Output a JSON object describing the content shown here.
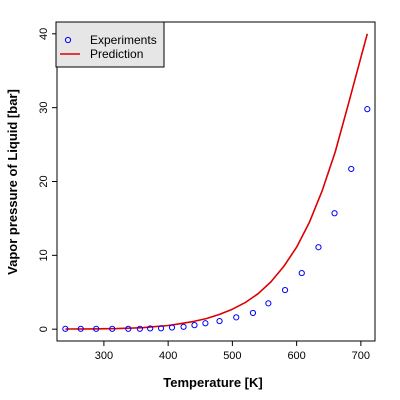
{
  "chart_data": {
    "type": "scatter",
    "title": "",
    "xlabel": "Temperature [K]",
    "ylabel": "Vapor pressure of Liquid [bar]",
    "xlim": [
      227,
      722
    ],
    "ylim": [
      -1.6,
      41.6
    ],
    "x_ticks": [
      300,
      400,
      500,
      600,
      700
    ],
    "y_ticks": [
      0,
      10,
      20,
      30,
      40
    ],
    "grid": false,
    "legend_position": "top-left",
    "series": [
      {
        "name": "Experiments",
        "kind": "points",
        "color": "#0000ff",
        "marker": "open-circle",
        "x": [
          240,
          264,
          288,
          313,
          338,
          356,
          372,
          389,
          406,
          424,
          441,
          458,
          480,
          506,
          532,
          556,
          582,
          608,
          634,
          659,
          685,
          710
        ],
        "y": [
          0.05,
          0.05,
          0.05,
          0.05,
          0.05,
          0.05,
          0.1,
          0.12,
          0.22,
          0.32,
          0.55,
          0.8,
          1.1,
          1.6,
          2.2,
          3.5,
          5.3,
          7.6,
          11.1,
          15.7,
          21.7,
          29.8
        ]
      },
      {
        "name": "Prediction",
        "kind": "line",
        "color": "#dd0000",
        "x": [
          240,
          280,
          320,
          360,
          400,
          420,
          440,
          460,
          480,
          500,
          520,
          540,
          560,
          580,
          600,
          620,
          640,
          660,
          680,
          700,
          710
        ],
        "y": [
          0.02,
          0.04,
          0.08,
          0.2,
          0.5,
          0.75,
          1.05,
          1.45,
          2.0,
          2.7,
          3.6,
          4.8,
          6.4,
          8.5,
          11.1,
          14.5,
          18.8,
          24.0,
          30.3,
          36.8,
          40.0
        ]
      }
    ]
  }
}
